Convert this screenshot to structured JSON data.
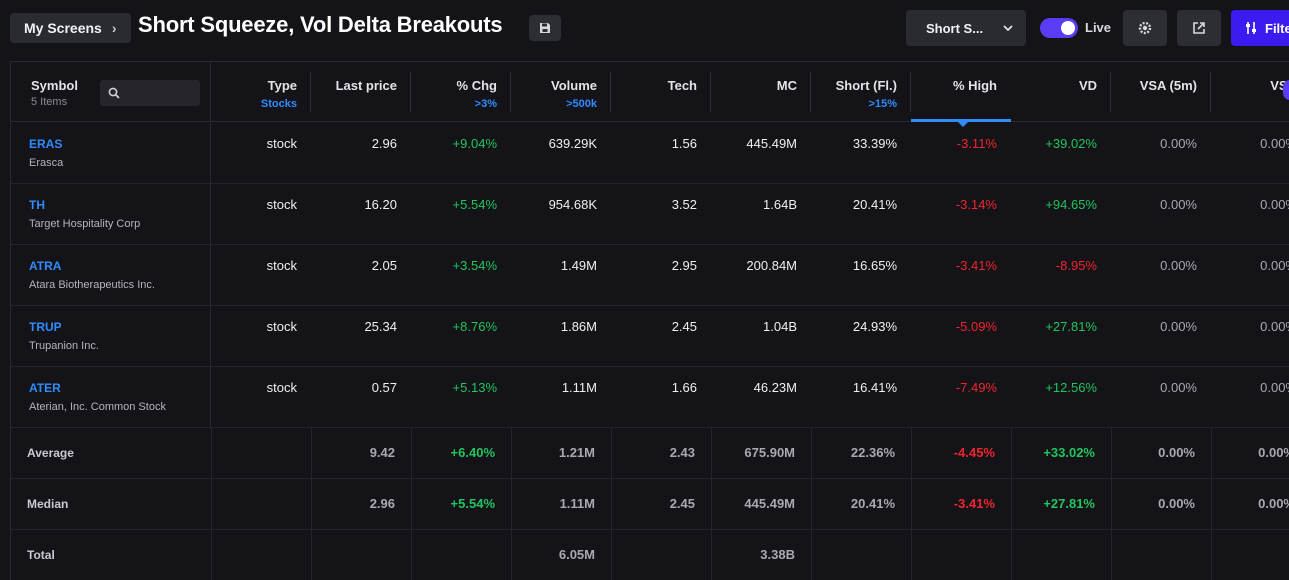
{
  "header": {
    "breadcrumb": "My Screens",
    "title": "Short Squeeze, Vol Delta Breakouts",
    "dropdown": "Short S...",
    "live_label": "Live",
    "filter_label": "Filte"
  },
  "table": {
    "symbol_header": "Symbol",
    "item_count": "5 Items",
    "search_placeholder": "",
    "columns": [
      {
        "label": "Type",
        "sub": "Stocks"
      },
      {
        "label": "Last price",
        "sub": ""
      },
      {
        "label": "% Chg",
        "sub": ">3%"
      },
      {
        "label": "Volume",
        "sub": ">500k"
      },
      {
        "label": "Tech",
        "sub": ""
      },
      {
        "label": "MC",
        "sub": ""
      },
      {
        "label": "Short (Fl.)",
        "sub": ">15%"
      },
      {
        "label": "% High",
        "sub": ""
      },
      {
        "label": "VD",
        "sub": ""
      },
      {
        "label": "VSA (5m)",
        "sub": ""
      },
      {
        "label": "VSA",
        "sub": ""
      }
    ],
    "rows": [
      {
        "ticker": "ERAS",
        "name": "Erasca",
        "type": "stock",
        "price": "2.96",
        "chg": "+9.04%",
        "volume": "639.29K",
        "tech": "1.56",
        "mc": "445.49M",
        "short": "33.39%",
        "high": "-3.11%",
        "vd": "+39.02%",
        "vsa5": "0.00%",
        "vsa": "0.00%"
      },
      {
        "ticker": "TH",
        "name": "Target Hospitality Corp",
        "type": "stock",
        "price": "16.20",
        "chg": "+5.54%",
        "volume": "954.68K",
        "tech": "3.52",
        "mc": "1.64B",
        "short": "20.41%",
        "high": "-3.14%",
        "vd": "+94.65%",
        "vsa5": "0.00%",
        "vsa": "0.00%"
      },
      {
        "ticker": "ATRA",
        "name": "Atara Biotherapeutics Inc.",
        "type": "stock",
        "price": "2.05",
        "chg": "+3.54%",
        "volume": "1.49M",
        "tech": "2.95",
        "mc": "200.84M",
        "short": "16.65%",
        "high": "-3.41%",
        "vd": "-8.95%",
        "vsa5": "0.00%",
        "vsa": "0.00%"
      },
      {
        "ticker": "TRUP",
        "name": "Trupanion Inc.",
        "type": "stock",
        "price": "25.34",
        "chg": "+8.76%",
        "volume": "1.86M",
        "tech": "2.45",
        "mc": "1.04B",
        "short": "24.93%",
        "high": "-5.09%",
        "vd": "+27.81%",
        "vsa5": "0.00%",
        "vsa": "0.00%"
      },
      {
        "ticker": "ATER",
        "name": "Aterian, Inc. Common Stock",
        "type": "stock",
        "price": "0.57",
        "chg": "+5.13%",
        "volume": "1.11M",
        "tech": "1.66",
        "mc": "46.23M",
        "short": "16.41%",
        "high": "-7.49%",
        "vd": "+12.56%",
        "vsa5": "0.00%",
        "vsa": "0.00%"
      }
    ],
    "summary": [
      {
        "label": "Average",
        "price": "9.42",
        "chg": "+6.40%",
        "volume": "1.21M",
        "tech": "2.43",
        "mc": "675.90M",
        "short": "22.36%",
        "high": "-4.45%",
        "vd": "+33.02%",
        "vsa5": "0.00%",
        "vsa": "0.00%"
      },
      {
        "label": "Median",
        "price": "2.96",
        "chg": "+5.54%",
        "volume": "1.11M",
        "tech": "2.45",
        "mc": "445.49M",
        "short": "20.41%",
        "high": "-3.41%",
        "vd": "+27.81%",
        "vsa5": "0.00%",
        "vsa": "0.00%"
      },
      {
        "label": "Total",
        "price": "",
        "chg": "",
        "volume": "6.05M",
        "tech": "",
        "mc": "3.38B",
        "short": "",
        "high": "",
        "vd": "",
        "vsa5": "",
        "vsa": ""
      }
    ]
  },
  "colors": {
    "accent": "#2f8cff",
    "positive": "#22c55e",
    "negative": "#f0262e",
    "brand": "#3b1cf0"
  },
  "icons": {
    "save": "save-icon",
    "settings": "gear-icon",
    "open": "external-link-icon",
    "filter": "filter-icon",
    "search": "search-icon"
  }
}
